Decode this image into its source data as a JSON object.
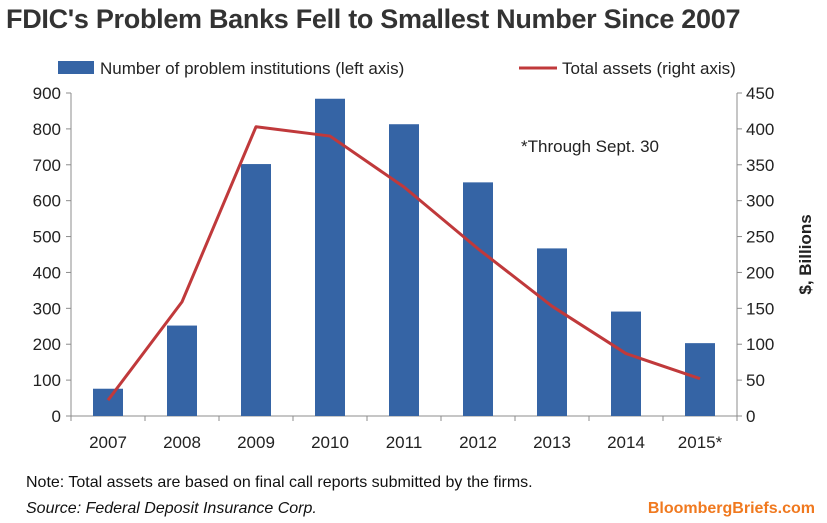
{
  "chart_data": {
    "type": "bar",
    "title": "FDIC's Problem Banks Fell to Smallest Number Since 2007",
    "categories": [
      "2007",
      "2008",
      "2009",
      "2010",
      "2011",
      "2012",
      "2013",
      "2014",
      "2015*"
    ],
    "series": [
      {
        "name": "Number of problem institutions (left axis)",
        "type": "bar",
        "axis": "left",
        "color": "#3564a5",
        "values": [
          76,
          252,
          702,
          884,
          813,
          651,
          467,
          291,
          203
        ]
      },
      {
        "name": "Total assets (right axis)",
        "type": "line",
        "axis": "right",
        "color": "#c0393b",
        "values": [
          22,
          159,
          403,
          390,
          319,
          233,
          153,
          87,
          52
        ]
      }
    ],
    "y_left": {
      "ticks": [
        "0",
        "100",
        "200",
        "300",
        "400",
        "500",
        "600",
        "700",
        "800",
        "900"
      ],
      "range": [
        0,
        900
      ]
    },
    "y_right": {
      "ticks": [
        "0",
        "50",
        "100",
        "150",
        "200",
        "250",
        "300",
        "350",
        "400",
        "450"
      ],
      "range": [
        0,
        450
      ],
      "label": "$, Billions"
    },
    "annotation": "*Through Sept. 30",
    "legend_position": "top",
    "grid": false
  },
  "footer": {
    "note": "Note: Total assets are based on final call reports submitted by the firms.",
    "source": "Source: Federal Deposit Insurance Corp.",
    "brand": "BloombergBriefs.com"
  }
}
